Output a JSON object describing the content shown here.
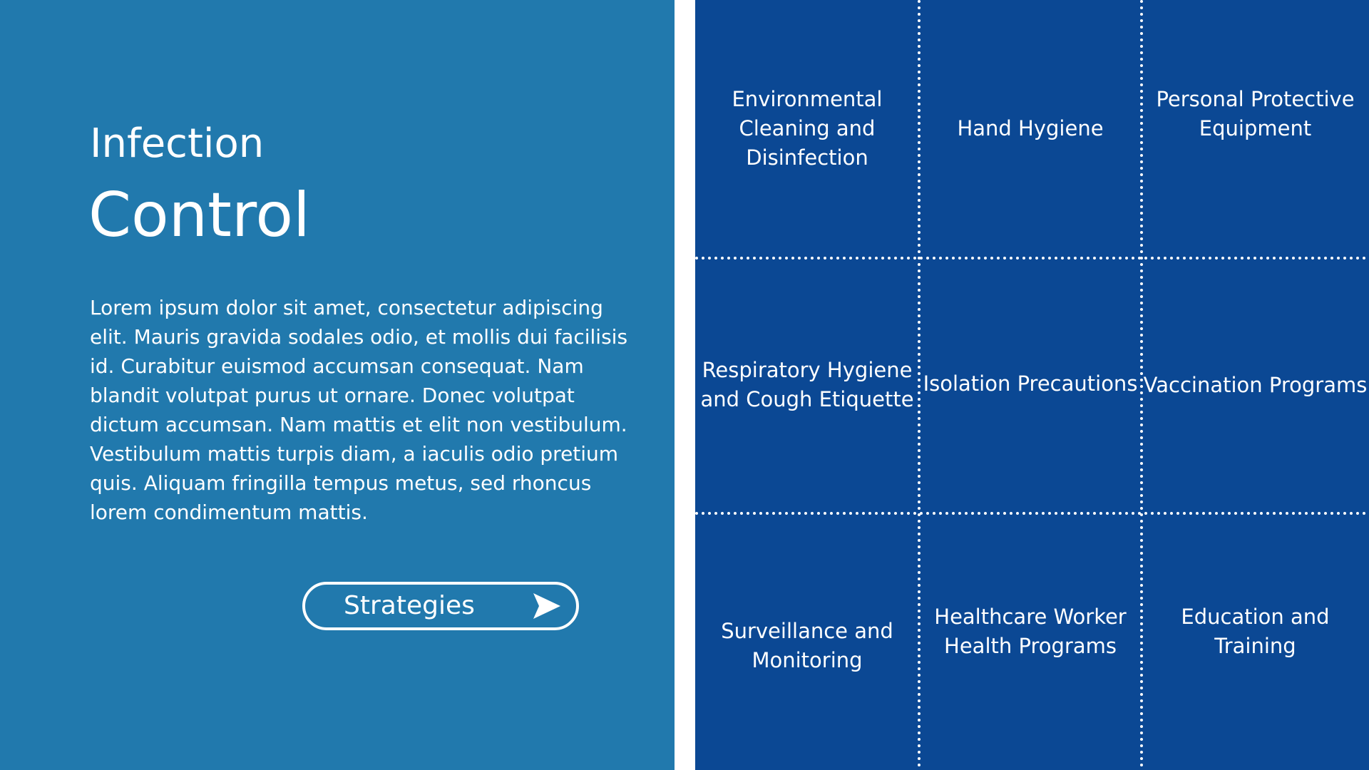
{
  "hero": {
    "title_line1": "Infection",
    "title_line2": "Control",
    "description": "Lorem ipsum dolor sit amet, consectetur adipiscing elit. Mauris gravida sodales odio, et mollis dui facilisis id. Curabitur euismod accumsan consequat. Nam blandit volutpat purus ut ornare. Donec volutpat dictum accumsan. Nam mattis et elit non vestibulum. Vestibulum mattis turpis diam, a iaculis odio pretium quis. Aliquam fringilla tempus metus, sed rhoncus lorem condimentum mattis.",
    "button_label": "Strategies",
    "button_icon": "play-arrow-icon"
  },
  "grid": {
    "cells": [
      "Environmental Cleaning and Disinfection",
      "Hand Hygiene",
      "Personal Protective Equipment",
      "Respiratory Hygiene and Cough Etiquette",
      "Isolation Precautions",
      "Vaccination Programs",
      "Surveillance and Monitoring",
      "Healthcare Worker Health Programs",
      "Education and Training"
    ]
  },
  "colors": {
    "left_panel": "#2179ad",
    "right_panel": "#0b4894",
    "text": "#ffffff",
    "divider": "#ffffff"
  }
}
